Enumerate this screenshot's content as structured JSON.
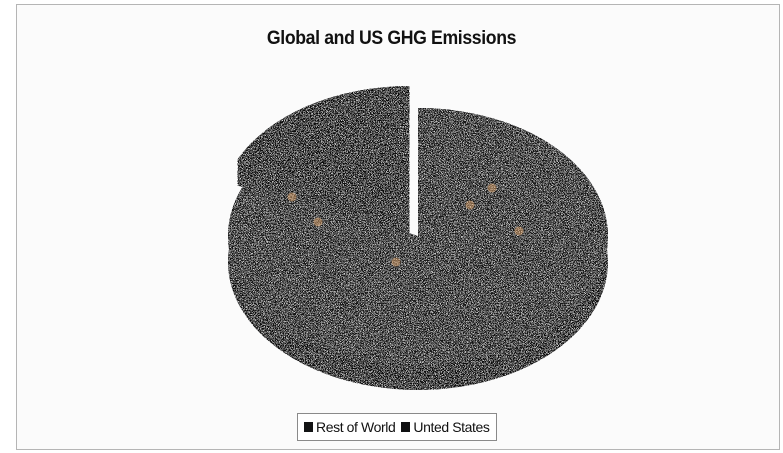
{
  "chart_data": {
    "type": "pie",
    "title": "Global and US GHG Emissions",
    "categories": [
      "Rest of World",
      "United States"
    ],
    "values": [
      82,
      18
    ],
    "exploded": "United States",
    "three_d": true,
    "legend_position": "bottom",
    "legend_labels": [
      "Rest of World",
      "Unted States"
    ]
  },
  "colors": {
    "rest_of_world": "#121314",
    "united_states": "#0f1011",
    "side": "#0a0a0b",
    "background": "#fbfbfb"
  }
}
